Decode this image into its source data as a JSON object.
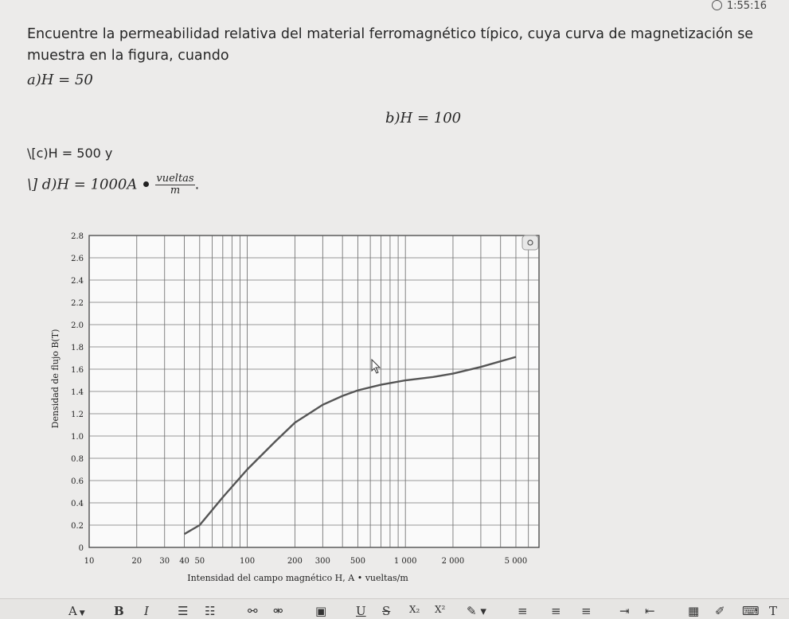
{
  "timer": "1:55:16",
  "question": {
    "prompt": "Encuentre la permeabilidad relativa del material ferromagnético típico, cuya curva de magnetización se muestra en la figura, cuando",
    "a": "a)H = 50",
    "b": "b)H = 100",
    "c": "\\[c)H = 500 y",
    "d_prefix": "\\] d)H = 1000A",
    "d_frac_num": "vueltas",
    "d_frac_den": "m",
    "d_suffix": "."
  },
  "chart_data": {
    "type": "line",
    "title": "",
    "xlabel": "Intensidad del campo magnético H, A • vueltas/m",
    "ylabel": "Densidad de flujo B(T)",
    "x_scale": "log",
    "xlim": [
      10,
      7000
    ],
    "ylim": [
      0,
      2.8
    ],
    "x_ticks": [
      "10",
      "20",
      "30",
      "40",
      "50",
      "100",
      "200",
      "300",
      "500",
      "1 000",
      "2 000",
      "5 000"
    ],
    "y_ticks": [
      "0",
      "0.2",
      "0.4",
      "0.6",
      "0.8",
      "1.0",
      "1.2",
      "1.4",
      "1.6",
      "1.8",
      "2.0",
      "2.2",
      "2.4",
      "2.6",
      "2.8"
    ],
    "grid": true,
    "series": [
      {
        "x": [
          40,
          50,
          70,
          100,
          150,
          200,
          300,
          400,
          500,
          700,
          1000,
          1500,
          2000,
          3000,
          5000
        ],
        "y": [
          0.12,
          0.2,
          0.45,
          0.7,
          0.95,
          1.12,
          1.28,
          1.36,
          1.41,
          1.46,
          1.5,
          1.53,
          1.56,
          1.62,
          1.71
        ]
      }
    ]
  },
  "toolbar": {
    "font_size": "A",
    "bold": "B",
    "italic": "I",
    "underline": "U",
    "strike": "S",
    "subscript": "X₂",
    "superscript": "X²"
  }
}
